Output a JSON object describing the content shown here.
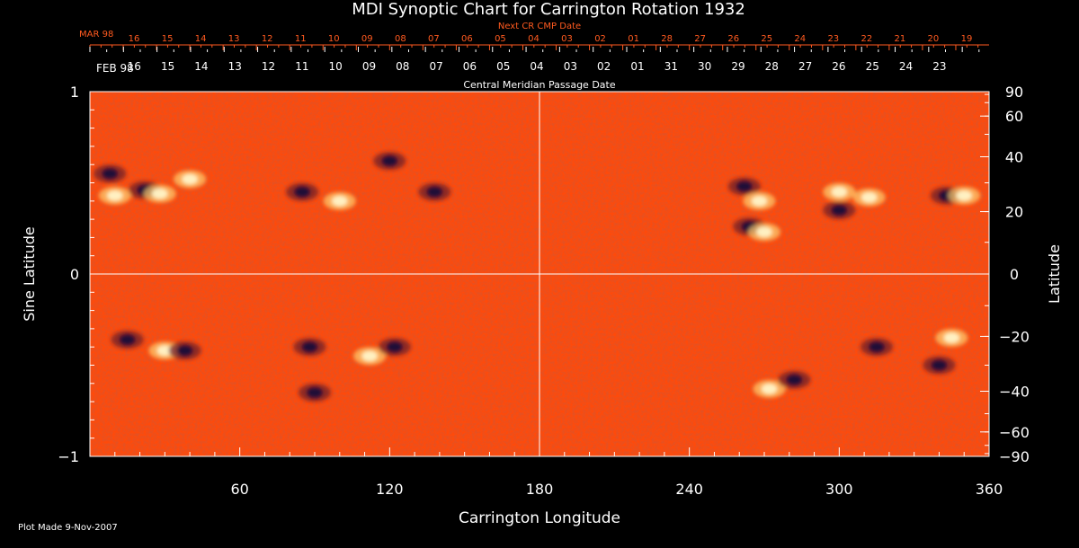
{
  "chart_data": {
    "type": "heatmap",
    "title": "MDI Synoptic Chart for Carrington Rotation 1932",
    "xlabel": "Carrington Longitude",
    "ylabel_left": "Sine Latitude",
    "ylabel_right": "Latitude",
    "xlim": [
      0,
      360
    ],
    "ylim": [
      -1,
      1
    ],
    "x_ticks": [
      60,
      120,
      180,
      240,
      300,
      360
    ],
    "y_ticks_left": [
      "1",
      "0",
      "−1"
    ],
    "y_ticks_right": [
      90,
      60,
      40,
      20,
      0,
      -20,
      -40,
      -60,
      -90
    ],
    "y_tick_labels_right": [
      "90",
      "60",
      "40",
      "20",
      "0",
      "−20",
      "−40",
      "−60",
      "−90"
    ],
    "gridlines": {
      "x": [
        180
      ],
      "y": [
        0
      ]
    },
    "top_axis_next": {
      "title": "Next CR CMP Date",
      "month_label": "MAR 98",
      "labels": [
        "16",
        "15",
        "14",
        "13",
        "12",
        "11",
        "10",
        "09",
        "08",
        "07",
        "06",
        "05",
        "04",
        "03",
        "02",
        "01",
        "28",
        "27",
        "26",
        "25",
        "24",
        "23",
        "22",
        "21",
        "20",
        "19"
      ]
    },
    "top_axis_cmp": {
      "title": "Central Meridian Passage Date",
      "month_label": "FEB 98",
      "labels": [
        "16",
        "15",
        "14",
        "13",
        "12",
        "11",
        "10",
        "09",
        "08",
        "07",
        "06",
        "05",
        "04",
        "03",
        "02",
        "01",
        "31",
        "30",
        "29",
        "28",
        "27",
        "26",
        "25",
        "24",
        "23"
      ]
    },
    "regions": [
      {
        "lon": 8,
        "lat": 0.55,
        "polarity": "neg"
      },
      {
        "lon": 10,
        "lat": 0.43,
        "polarity": "pos"
      },
      {
        "lon": 22,
        "lat": 0.46,
        "polarity": "neg"
      },
      {
        "lon": 28,
        "lat": 0.44,
        "polarity": "pos"
      },
      {
        "lon": 40,
        "lat": 0.52,
        "polarity": "pos"
      },
      {
        "lon": 85,
        "lat": 0.45,
        "polarity": "neg"
      },
      {
        "lon": 100,
        "lat": 0.4,
        "polarity": "pos"
      },
      {
        "lon": 138,
        "lat": 0.45,
        "polarity": "neg"
      },
      {
        "lon": 120,
        "lat": 0.62,
        "polarity": "neg"
      },
      {
        "lon": 15,
        "lat": -0.36,
        "polarity": "neg"
      },
      {
        "lon": 30,
        "lat": -0.42,
        "polarity": "pos"
      },
      {
        "lon": 38,
        "lat": -0.42,
        "polarity": "neg"
      },
      {
        "lon": 88,
        "lat": -0.4,
        "polarity": "neg"
      },
      {
        "lon": 112,
        "lat": -0.45,
        "polarity": "pos"
      },
      {
        "lon": 122,
        "lat": -0.4,
        "polarity": "neg"
      },
      {
        "lon": 90,
        "lat": -0.65,
        "polarity": "neg"
      },
      {
        "lon": 262,
        "lat": 0.48,
        "polarity": "neg"
      },
      {
        "lon": 268,
        "lat": 0.4,
        "polarity": "pos"
      },
      {
        "lon": 264,
        "lat": 0.26,
        "polarity": "neg"
      },
      {
        "lon": 270,
        "lat": 0.23,
        "polarity": "pos"
      },
      {
        "lon": 300,
        "lat": 0.45,
        "polarity": "pos"
      },
      {
        "lon": 300,
        "lat": 0.35,
        "polarity": "neg"
      },
      {
        "lon": 312,
        "lat": 0.42,
        "polarity": "pos"
      },
      {
        "lon": 343,
        "lat": 0.43,
        "polarity": "neg"
      },
      {
        "lon": 350,
        "lat": 0.43,
        "polarity": "pos"
      },
      {
        "lon": 272,
        "lat": -0.63,
        "polarity": "pos"
      },
      {
        "lon": 282,
        "lat": -0.58,
        "polarity": "neg"
      },
      {
        "lon": 340,
        "lat": -0.5,
        "polarity": "neg"
      },
      {
        "lon": 345,
        "lat": -0.35,
        "polarity": "pos"
      },
      {
        "lon": 315,
        "lat": -0.4,
        "polarity": "neg"
      }
    ]
  },
  "footer": "Plot Made  9-Nov-2007"
}
